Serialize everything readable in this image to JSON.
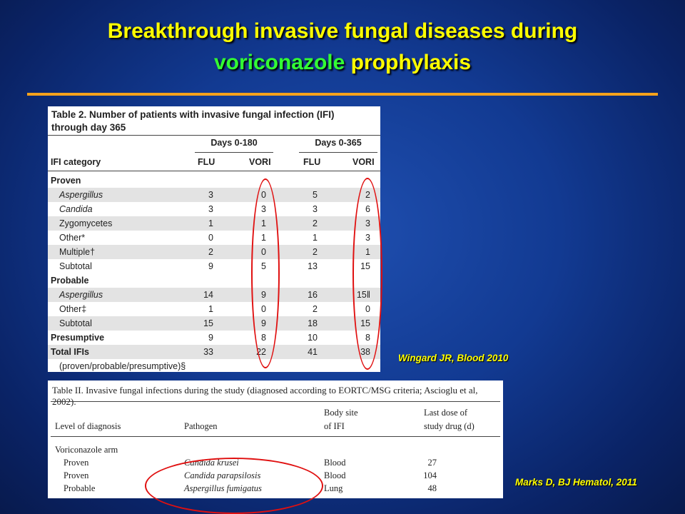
{
  "title": {
    "line1": "Breakthrough invasive fungal diseases during",
    "line2_green": "voriconazole",
    "line2_rest": " prophylaxis"
  },
  "table2": {
    "caption_line1": "Table 2. Number of patients with invasive fungal infection (IFI)",
    "caption_line2": "through day 365",
    "group1": "Days 0-180",
    "group2": "Days 0-365",
    "category_header": "IFI category",
    "col_flu": "FLU",
    "col_vori": "VORI",
    "rows": [
      {
        "label": "Proven",
        "vals": [
          "",
          "",
          "",
          ""
        ]
      },
      {
        "label": "Aspergillus",
        "vals": [
          "3",
          "0",
          "5",
          "2"
        ]
      },
      {
        "label": "Candida",
        "vals": [
          "3",
          "3",
          "3",
          "6"
        ]
      },
      {
        "label": "Zygomycetes",
        "vals": [
          "1",
          "1",
          "2",
          "3"
        ]
      },
      {
        "label": "Other*",
        "vals": [
          "0",
          "1",
          "1",
          "3"
        ]
      },
      {
        "label": "Multiple†",
        "vals": [
          "2",
          "0",
          "2",
          "1"
        ]
      },
      {
        "label": "Subtotal",
        "vals": [
          "9",
          "5",
          "13",
          "15"
        ]
      },
      {
        "label": "Probable",
        "vals": [
          "",
          "",
          "",
          ""
        ]
      },
      {
        "label": "Aspergillus",
        "vals": [
          "14",
          "9",
          "16",
          "15‖"
        ]
      },
      {
        "label": "Other‡",
        "vals": [
          "1",
          "0",
          "2",
          "0"
        ]
      },
      {
        "label": "Subtotal",
        "vals": [
          "15",
          "9",
          "18",
          "15"
        ]
      },
      {
        "label": "Presumptive",
        "vals": [
          "9",
          "8",
          "10",
          "8"
        ]
      },
      {
        "label": "Total IFIs",
        "vals": [
          "33",
          "22",
          "41",
          "38"
        ]
      },
      {
        "label": "(proven/probable/presumptive)§",
        "vals": [
          "",
          "",
          "",
          ""
        ]
      }
    ]
  },
  "citation1": "Wingard JR, Blood 2010",
  "table3": {
    "caption": "Table II. Invasive fungal infections during the study (diagnosed according to EORTC/MSG criteria; Ascioglu et al, 2002).",
    "h_level": "Level of diagnosis",
    "h_pathogen": "Pathogen",
    "h_site1": "Body site",
    "h_site2": "of IFI",
    "h_dose1": "Last dose of",
    "h_dose2": "study drug (d)",
    "arm": "Voriconazole arm",
    "rows": [
      {
        "level": "Proven",
        "pathogen": "Candida krusei",
        "site": "Blood",
        "dose": "27"
      },
      {
        "level": "Proven",
        "pathogen": "Candida parapsilosis",
        "site": "Blood",
        "dose": "104"
      },
      {
        "level": "Probable",
        "pathogen": "Aspergillus fumigatus",
        "site": "Lung",
        "dose": "48"
      }
    ]
  },
  "citation2": "Marks D, BJ Hematol, 2011",
  "colors": {
    "title": "#ffff00",
    "title_green": "#33ff33",
    "rule": "#f5a21c",
    "oval": "#e01010"
  }
}
